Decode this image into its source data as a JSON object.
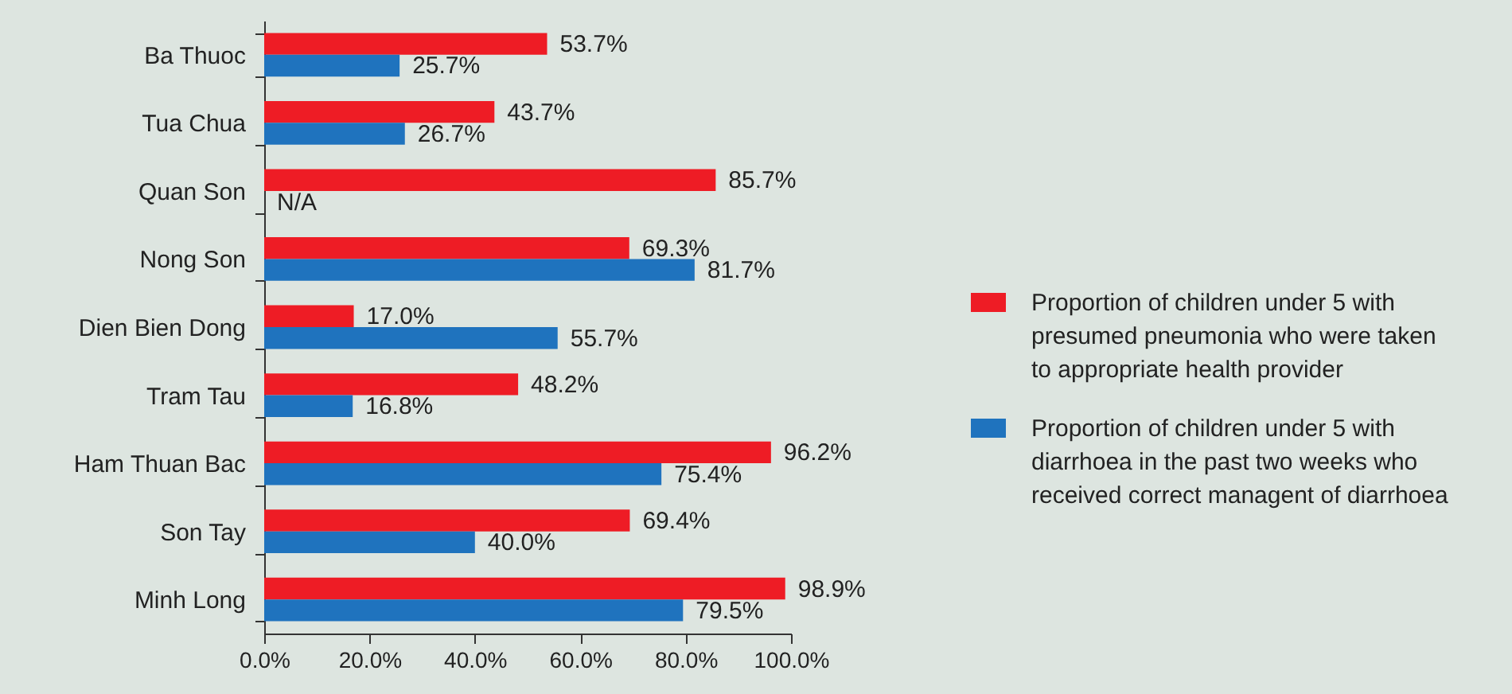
{
  "chart_data": {
    "type": "bar",
    "orientation": "horizontal",
    "categories": [
      "Ba Thuoc",
      "Tua Chua",
      "Quan Son",
      "Nong Son",
      "Dien Bien Dong",
      "Tram Tau",
      "Ham Thuan Bac",
      "Son Tay",
      "Minh Long"
    ],
    "series": [
      {
        "name": "Proportion of children under 5 with presumed pneumonia who were taken to appropriate health provider",
        "color": "#ee1c25",
        "values": [
          53.7,
          43.7,
          85.7,
          69.3,
          17.0,
          48.2,
          96.2,
          69.4,
          98.9
        ],
        "value_labels": [
          "53.7%",
          "43.7%",
          "85.7%",
          "69.3%",
          "17.0%",
          "48.2%",
          "96.2%",
          "69.4%",
          "98.9%"
        ]
      },
      {
        "name": "Proportion of children under 5 with diarrhoea in the past two weeks who received correct managent of diarrhoea",
        "color": "#1f73be",
        "values": [
          25.7,
          26.7,
          null,
          81.7,
          55.7,
          16.8,
          75.4,
          40.0,
          79.5
        ],
        "value_labels": [
          "25.7%",
          "26.7%",
          "N/A",
          "81.7%",
          "55.7%",
          "16.8%",
          "75.4%",
          "40.0%",
          "79.5%"
        ]
      }
    ],
    "xlim": [
      0,
      100
    ],
    "xticks": [
      {
        "value": 0,
        "label": "0.0%"
      },
      {
        "value": 20,
        "label": "20.0%"
      },
      {
        "value": 40,
        "label": "40.0%"
      },
      {
        "value": 60,
        "label": "60.0%"
      },
      {
        "value": 80,
        "label": "80.0%"
      },
      {
        "value": 100,
        "label": "100.0%"
      }
    ],
    "grid": false,
    "legend": "right"
  }
}
